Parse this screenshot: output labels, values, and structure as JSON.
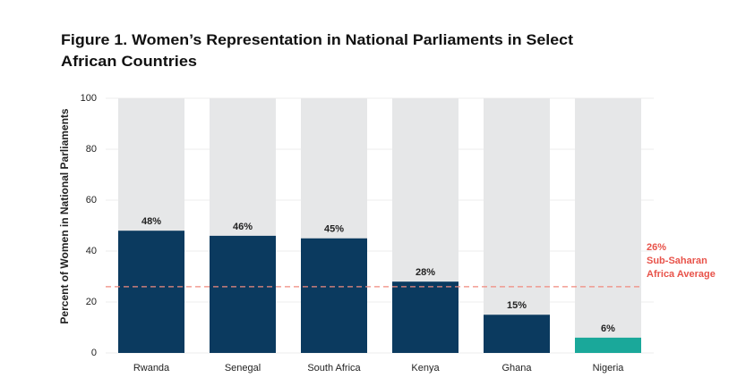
{
  "chart_data": {
    "type": "bar",
    "title": [
      "Figure 1. Women’s Representation in National Parliaments in Select",
      "African Countries"
    ],
    "y_label": "Percent of Women in National Parliaments",
    "categories": [
      "Rwanda",
      "Senegal",
      "South Africa",
      "Kenya",
      "Ghana",
      "Nigeria"
    ],
    "values": [
      48,
      46,
      45,
      28,
      15,
      6
    ],
    "value_labels": [
      "48%",
      "46%",
      "45%",
      "28%",
      "15%",
      "6%"
    ],
    "colors": [
      "#0b3a5f",
      "#0b3a5f",
      "#0b3a5f",
      "#0b3a5f",
      "#0b3a5f",
      "#1aa89a"
    ],
    "background_color": "#e6e7e8",
    "ylim": [
      0,
      100
    ],
    "yticks": [
      0,
      20,
      40,
      60,
      80,
      100
    ],
    "grid": true,
    "reference": {
      "value": 26,
      "color": "#f08a7e",
      "label": [
        "26%",
        "Sub-Saharan",
        "Africa Average"
      ]
    }
  }
}
